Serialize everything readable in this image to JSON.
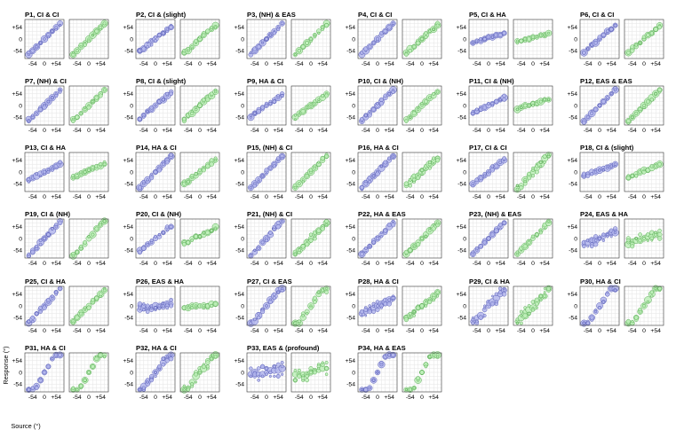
{
  "chart_data": {
    "type": "scatter",
    "title": "",
    "xlabel": "Source (°)",
    "ylabel": "Response (°)",
    "xlim": [
      -90,
      90
    ],
    "ylim": [
      -90,
      90
    ],
    "xticks": [
      -54,
      0,
      54
    ],
    "yticks": [
      -54,
      0,
      54
    ],
    "xtick_labels": [
      "-54",
      "0",
      "+54"
    ],
    "ytick_labels": [
      "-54",
      "0",
      "+54"
    ],
    "grid": true,
    "marker_sizes": "proportional to response count",
    "series_colors": [
      "#b3b6ec",
      "#bdeeb9"
    ],
    "series_edge_colors": [
      "#5a5fb8",
      "#5aad55"
    ],
    "panels": [
      {
        "id": "P1",
        "title": "P1, CI & CI",
        "slopes": [
          0.95,
          0.95
        ],
        "offsets": [
          0,
          0
        ],
        "noises": [
          7,
          7
        ]
      },
      {
        "id": "P2",
        "title": "P2, CI & (slight)",
        "slopes": [
          0.8,
          0.9
        ],
        "offsets": [
          0,
          0
        ],
        "noises": [
          10,
          9
        ]
      },
      {
        "id": "P3",
        "title": "P3, (NH) & EAS",
        "slopes": [
          0.95,
          0.95
        ],
        "offsets": [
          0,
          0
        ],
        "noises": [
          6,
          7
        ]
      },
      {
        "id": "P4",
        "title": "P4, CI & CI",
        "slopes": [
          0.95,
          0.9
        ],
        "offsets": [
          0,
          0
        ],
        "noises": [
          8,
          8
        ]
      },
      {
        "id": "P5",
        "title": "P5, CI & HA",
        "slopes": [
          0.3,
          0.25
        ],
        "offsets": [
          6,
          6
        ],
        "noises": [
          7,
          5
        ]
      },
      {
        "id": "P6",
        "title": "P6, CI & CI",
        "slopes": [
          0.85,
          0.85
        ],
        "offsets": [
          0,
          0
        ],
        "noises": [
          8,
          8
        ]
      },
      {
        "id": "P7",
        "title": "P7, (NH) & CI",
        "slopes": [
          0.95,
          0.95
        ],
        "offsets": [
          0,
          0
        ],
        "noises": [
          6,
          7
        ]
      },
      {
        "id": "P8",
        "title": "P8, CI & (slight)",
        "slopes": [
          0.85,
          0.9
        ],
        "offsets": [
          0,
          0
        ],
        "noises": [
          8,
          8
        ]
      },
      {
        "id": "P9",
        "title": "P9, HA & CI",
        "slopes": [
          0.7,
          0.75
        ],
        "offsets": [
          0,
          0
        ],
        "noises": [
          8,
          8
        ]
      },
      {
        "id": "P10",
        "title": "P10, CI & (NH)",
        "slopes": [
          0.95,
          0.9
        ],
        "offsets": [
          0,
          0
        ],
        "noises": [
          12,
          7
        ]
      },
      {
        "id": "P11",
        "title": "P11, CI & (NH)",
        "slopes": [
          0.5,
          0.3
        ],
        "offsets": [
          0,
          8
        ],
        "noises": [
          8,
          6
        ]
      },
      {
        "id": "P12",
        "title": "P12, EAS & EAS",
        "slopes": [
          1.0,
          1.0
        ],
        "offsets": [
          0,
          0
        ],
        "noises": [
          6,
          6
        ]
      },
      {
        "id": "P13",
        "title": "P13, CI & HA",
        "slopes": [
          0.5,
          0.45
        ],
        "offsets": [
          0,
          6
        ],
        "noises": [
          8,
          7
        ]
      },
      {
        "id": "P14",
        "title": "P14, HA & CI",
        "slopes": [
          1.0,
          0.8
        ],
        "offsets": [
          0,
          0
        ],
        "noises": [
          10,
          12
        ]
      },
      {
        "id": "P15",
        "title": "P15, (NH) & CI",
        "slopes": [
          1.0,
          1.0
        ],
        "offsets": [
          0,
          0
        ],
        "noises": [
          7,
          8
        ]
      },
      {
        "id": "P16",
        "title": "P16, HA & CI",
        "slopes": [
          1.0,
          0.9
        ],
        "offsets": [
          0,
          0
        ],
        "noises": [
          13,
          16
        ]
      },
      {
        "id": "P17",
        "title": "P17, CI & CI",
        "slopes": [
          0.8,
          1.1
        ],
        "offsets": [
          0,
          0
        ],
        "noises": [
          10,
          18
        ]
      },
      {
        "id": "P18",
        "title": "P18, CI & (slight)",
        "slopes": [
          0.35,
          0.4
        ],
        "offsets": [
          8,
          4
        ],
        "noises": [
          6,
          8
        ]
      },
      {
        "id": "P19",
        "title": "P19, CI & (NH)",
        "slopes": [
          1.1,
          1.2
        ],
        "offsets": [
          0,
          0
        ],
        "noises": [
          8,
          10
        ]
      },
      {
        "id": "P20",
        "title": "P20, CI & (NH)",
        "slopes": [
          0.8,
          0.5
        ],
        "offsets": [
          0,
          14
        ],
        "noises": [
          8,
          8
        ]
      },
      {
        "id": "P21",
        "title": "P21, (NH) & CI",
        "slopes": [
          1.2,
          1.0
        ],
        "offsets": [
          0,
          0
        ],
        "noises": [
          10,
          16
        ]
      },
      {
        "id": "P22",
        "title": "P22, HA & EAS",
        "slopes": [
          1.0,
          1.0
        ],
        "offsets": [
          0,
          0
        ],
        "noises": [
          10,
          12
        ]
      },
      {
        "id": "P23",
        "title": "P23, (NH) & EAS",
        "slopes": [
          1.0,
          1.0
        ],
        "offsets": [
          0,
          0
        ],
        "noises": [
          7,
          9
        ]
      },
      {
        "id": "P24",
        "title": "P24, EAS & HA",
        "slopes": [
          0.4,
          0.3
        ],
        "offsets": [
          0,
          0
        ],
        "noises": [
          18,
          20
        ]
      },
      {
        "id": "P25",
        "title": "P25, CI & HA",
        "slopes": [
          1.1,
          1.0
        ],
        "offsets": [
          0,
          0
        ],
        "noises": [
          10,
          10
        ]
      },
      {
        "id": "P26",
        "title": "P26, EAS & HA",
        "slopes": [
          0.2,
          0.1
        ],
        "offsets": [
          0,
          0
        ],
        "noises": [
          22,
          10
        ]
      },
      {
        "id": "P27",
        "title": "P27, CI & EAS",
        "slopes": [
          1.3,
          1.4
        ],
        "offsets": [
          0,
          0
        ],
        "noises": [
          12,
          14
        ]
      },
      {
        "id": "P28",
        "title": "P28, HA & CI",
        "slopes": [
          0.5,
          0.8
        ],
        "offsets": [
          0,
          0
        ],
        "noises": [
          22,
          16
        ]
      },
      {
        "id": "P29",
        "title": "P29, CI & HA",
        "slopes": [
          1.0,
          1.0
        ],
        "offsets": [
          0,
          0
        ],
        "noises": [
          25,
          28
        ]
      },
      {
        "id": "P30",
        "title": "P30, HA & CI",
        "slopes": [
          1.5,
          1.5
        ],
        "offsets": [
          0,
          0
        ],
        "noises": [
          10,
          10
        ]
      },
      {
        "id": "P31",
        "title": "P31, HA & CI",
        "slopes": [
          1.8,
          1.8
        ],
        "offsets": [
          0,
          0
        ],
        "noises": [
          8,
          8
        ]
      },
      {
        "id": "P32",
        "title": "P32, HA & CI",
        "slopes": [
          1.3,
          1.3
        ],
        "offsets": [
          0,
          0
        ],
        "noises": [
          20,
          30
        ]
      },
      {
        "id": "P33",
        "title": "P33, EAS & (profound)",
        "slopes": [
          0.2,
          0.2
        ],
        "offsets": [
          0,
          0
        ],
        "noises": [
          35,
          35
        ]
      },
      {
        "id": "P34",
        "title": "P34, HA & EAS",
        "slopes": [
          2.0,
          2.0
        ],
        "offsets": [
          0,
          0
        ],
        "noises": [
          5,
          5
        ]
      }
    ]
  }
}
